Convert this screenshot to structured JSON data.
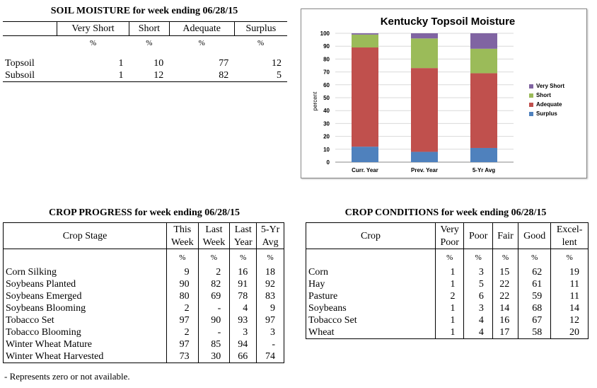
{
  "soil_moisture": {
    "title": "SOIL MOISTURE for week ending 06/28/15",
    "headers": [
      "Very Short",
      "Short",
      "Adequate",
      "Surplus"
    ],
    "unit": "%",
    "rows": [
      {
        "label": "Topsoil",
        "values": [
          "1",
          "10",
          "77",
          "12"
        ]
      },
      {
        "label": "Subsoil",
        "values": [
          "1",
          "12",
          "82",
          "5"
        ]
      }
    ]
  },
  "crop_progress": {
    "title": "CROP PROGRESS for week ending 06/28/15",
    "stage_header": "Crop Stage",
    "headers": [
      [
        "This",
        "Week"
      ],
      [
        "Last",
        "Week"
      ],
      [
        "Last",
        "Year"
      ],
      [
        "5-Yr",
        "Avg"
      ]
    ],
    "unit": "%",
    "rows": [
      {
        "label": "Corn Silking",
        "values": [
          "9",
          "2",
          "16",
          "18"
        ]
      },
      {
        "label": "Soybeans Planted",
        "values": [
          "90",
          "82",
          "91",
          "92"
        ]
      },
      {
        "label": "Soybeans Emerged",
        "values": [
          "80",
          "69",
          "78",
          "83"
        ]
      },
      {
        "label": "Soybeans Blooming",
        "values": [
          "2",
          "-",
          "4",
          "9"
        ]
      },
      {
        "label": "Tobacco Set",
        "values": [
          "97",
          "90",
          "93",
          "97"
        ]
      },
      {
        "label": "Tobacco Blooming",
        "values": [
          "2",
          "-",
          "3",
          "3"
        ]
      },
      {
        "label": "Winter Wheat Mature",
        "values": [
          "97",
          "85",
          "94",
          "-"
        ]
      },
      {
        "label": "Winter Wheat Harvested",
        "values": [
          "73",
          "30",
          "66",
          "74"
        ]
      }
    ],
    "footnote": "- Represents zero or not available."
  },
  "crop_conditions": {
    "title": "CROP CONDITIONS for week ending 06/28/15",
    "crop_header": "Crop",
    "headers": [
      [
        "Very",
        "Poor"
      ],
      [
        "Poor"
      ],
      [
        "Fair"
      ],
      [
        "Good"
      ],
      [
        "Excel-",
        "lent"
      ]
    ],
    "unit": "%",
    "rows": [
      {
        "label": "Corn",
        "values": [
          "1",
          "3",
          "15",
          "62",
          "19"
        ]
      },
      {
        "label": "Hay",
        "values": [
          "1",
          "5",
          "22",
          "61",
          "11"
        ]
      },
      {
        "label": "Pasture",
        "values": [
          "2",
          "6",
          "22",
          "59",
          "11"
        ]
      },
      {
        "label": "Soybeans",
        "values": [
          "1",
          "3",
          "14",
          "68",
          "14"
        ]
      },
      {
        "label": "Tobacco Set",
        "values": [
          "1",
          "4",
          "16",
          "67",
          "12"
        ]
      },
      {
        "label": "Wheat",
        "values": [
          "1",
          "4",
          "17",
          "58",
          "20"
        ]
      }
    ]
  },
  "chart_data": {
    "type": "bar",
    "stacked": true,
    "title": "Kentucky Topsoil Moisture",
    "ylabel": "percent",
    "xlabel": "",
    "ylim": [
      0,
      100
    ],
    "yticks": [
      0,
      10,
      20,
      30,
      40,
      50,
      60,
      70,
      80,
      90,
      100
    ],
    "categories": [
      "Curr. Year",
      "Prev. Year",
      "5-Yr Avg"
    ],
    "series": [
      {
        "name": "Surplus",
        "color": "#4f81bd",
        "values": [
          12,
          8,
          11
        ]
      },
      {
        "name": "Adequate",
        "color": "#c0504d",
        "values": [
          77,
          65,
          58
        ]
      },
      {
        "name": "Short",
        "color": "#9bbb59",
        "values": [
          10,
          23,
          19
        ]
      },
      {
        "name": "Very Short",
        "color": "#8064a2",
        "values": [
          1,
          4,
          12
        ]
      }
    ],
    "legend_order": [
      "Very Short",
      "Short",
      "Adequate",
      "Surplus"
    ],
    "legend_position": "right",
    "grid": true
  }
}
